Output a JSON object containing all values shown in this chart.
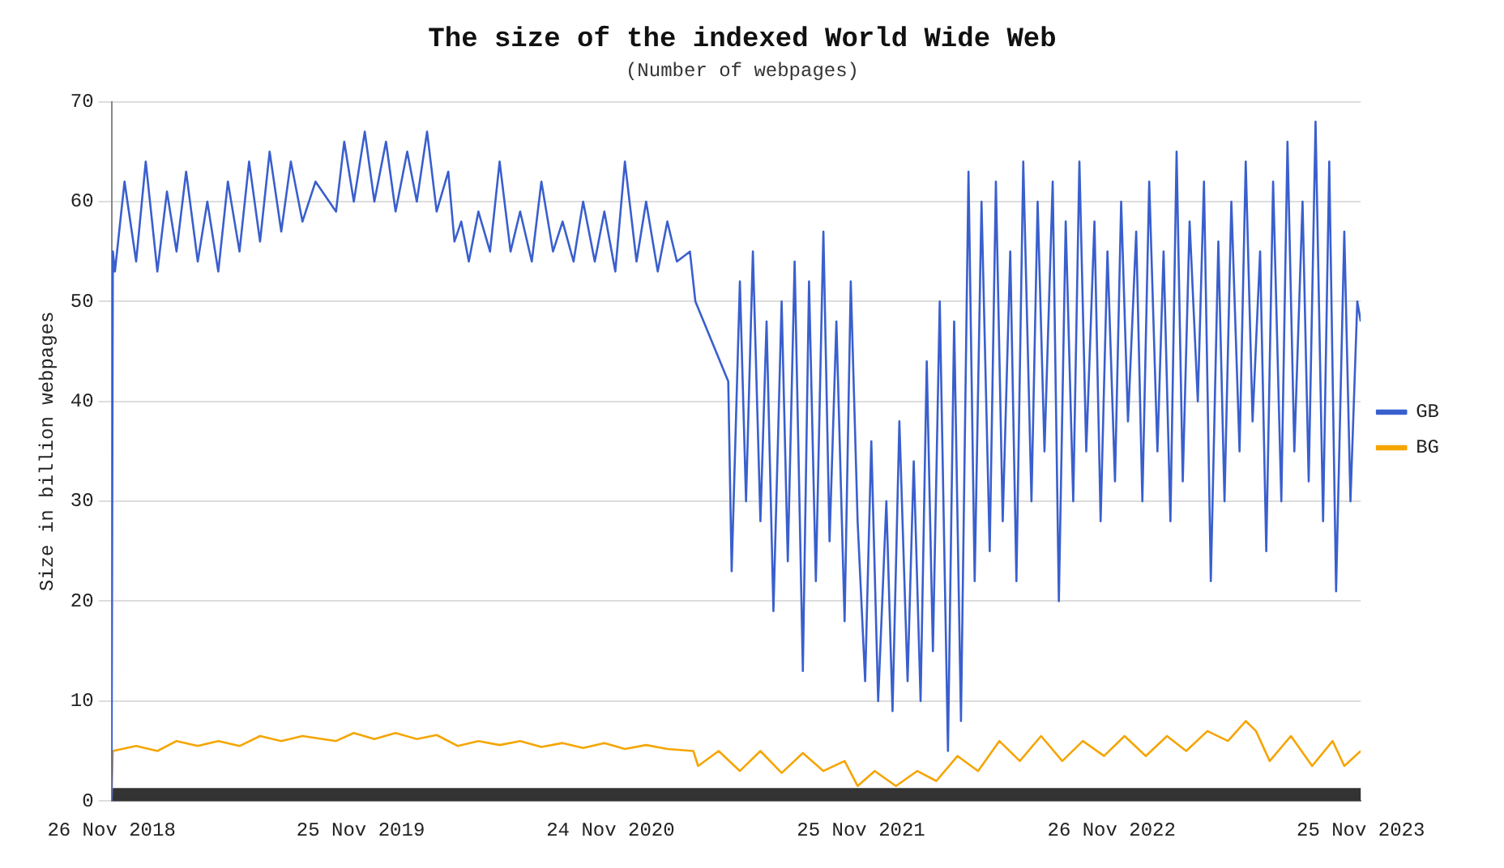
{
  "chart_data": {
    "type": "line",
    "title": "The size of the indexed World Wide Web",
    "subtitle": "(Number of webpages)",
    "ylabel": "Size in billion webpages",
    "xlim": [
      "2018-11-26",
      "2023-11-25"
    ],
    "xticks": [
      {
        "value": "2018-11-26",
        "label": "26 Nov 2018"
      },
      {
        "value": "2019-11-25",
        "label": "25 Nov 2019"
      },
      {
        "value": "2020-11-24",
        "label": "24 Nov 2020"
      },
      {
        "value": "2021-11-25",
        "label": "25 Nov 2021"
      },
      {
        "value": "2022-11-26",
        "label": "26 Nov 2022"
      },
      {
        "value": "2023-11-25",
        "label": "25 Nov 2023"
      }
    ],
    "ylim": [
      0,
      70
    ],
    "yticks": [
      0,
      10,
      20,
      30,
      40,
      50,
      60,
      70
    ],
    "grid": "y",
    "legend": "right",
    "marker": "none",
    "line_style": "solid",
    "bands": [
      {
        "axis": "y",
        "from": 0,
        "to": 1.3,
        "color": "#333333"
      }
    ],
    "series": [
      {
        "name": "GB",
        "color": "#3a5fcd",
        "x": [
          "2018-11-26",
          "2018-11-28",
          "2018-12-01",
          "2018-12-15",
          "2019-01-01",
          "2019-01-15",
          "2019-02-01",
          "2019-02-15",
          "2019-03-01",
          "2019-03-15",
          "2019-04-01",
          "2019-04-15",
          "2019-05-01",
          "2019-05-15",
          "2019-06-01",
          "2019-06-15",
          "2019-07-01",
          "2019-07-15",
          "2019-08-01",
          "2019-08-15",
          "2019-09-01",
          "2019-09-20",
          "2019-10-20",
          "2019-11-01",
          "2019-11-15",
          "2019-12-01",
          "2019-12-15",
          "2020-01-01",
          "2020-01-15",
          "2020-02-01",
          "2020-02-15",
          "2020-03-01",
          "2020-03-15",
          "2020-04-01",
          "2020-04-10",
          "2020-04-20",
          "2020-05-01",
          "2020-05-15",
          "2020-06-01",
          "2020-06-15",
          "2020-07-01",
          "2020-07-15",
          "2020-08-01",
          "2020-08-15",
          "2020-09-01",
          "2020-09-15",
          "2020-10-01",
          "2020-10-15",
          "2020-11-01",
          "2020-11-15",
          "2020-12-01",
          "2020-12-15",
          "2021-01-01",
          "2021-01-15",
          "2021-02-01",
          "2021-02-15",
          "2021-03-01",
          "2021-03-20",
          "2021-03-28",
          "2021-05-15",
          "2021-05-20",
          "2021-06-01",
          "2021-06-10",
          "2021-06-20",
          "2021-07-01",
          "2021-07-10",
          "2021-07-20",
          "2021-08-01",
          "2021-08-10",
          "2021-08-20",
          "2021-09-01",
          "2021-09-10",
          "2021-09-20",
          "2021-10-01",
          "2021-10-10",
          "2021-10-20",
          "2021-11-01",
          "2021-11-10",
          "2021-11-20",
          "2021-12-01",
          "2021-12-10",
          "2021-12-20",
          "2022-01-01",
          "2022-01-10",
          "2022-01-20",
          "2022-02-01",
          "2022-02-10",
          "2022-02-20",
          "2022-03-01",
          "2022-03-10",
          "2022-03-20",
          "2022-04-01",
          "2022-04-10",
          "2022-04-20",
          "2022-05-01",
          "2022-05-10",
          "2022-05-20",
          "2022-06-01",
          "2022-06-10",
          "2022-06-20",
          "2022-07-01",
          "2022-07-10",
          "2022-07-20",
          "2022-08-01",
          "2022-08-10",
          "2022-08-20",
          "2022-09-01",
          "2022-09-10",
          "2022-09-20",
          "2022-10-01",
          "2022-10-10",
          "2022-10-20",
          "2022-11-01",
          "2022-11-10",
          "2022-11-20",
          "2022-12-01",
          "2022-12-10",
          "2022-12-20",
          "2023-01-01",
          "2023-01-10",
          "2023-01-20",
          "2023-02-01",
          "2023-02-10",
          "2023-02-20",
          "2023-03-01",
          "2023-03-10",
          "2023-03-20",
          "2023-04-01",
          "2023-04-10",
          "2023-04-20",
          "2023-05-01",
          "2023-05-10",
          "2023-05-20",
          "2023-06-01",
          "2023-06-10",
          "2023-06-20",
          "2023-07-01",
          "2023-07-10",
          "2023-07-20",
          "2023-08-01",
          "2023-08-10",
          "2023-08-20",
          "2023-09-01",
          "2023-09-10",
          "2023-09-20",
          "2023-10-01",
          "2023-10-10",
          "2023-10-20",
          "2023-11-01",
          "2023-11-10",
          "2023-11-20",
          "2023-11-25"
        ],
        "values": [
          0,
          55,
          53,
          62,
          54,
          64,
          53,
          61,
          55,
          63,
          54,
          60,
          53,
          62,
          55,
          64,
          56,
          65,
          57,
          64,
          58,
          62,
          59,
          66,
          60,
          67,
          60,
          66,
          59,
          65,
          60,
          67,
          59,
          63,
          56,
          58,
          54,
          59,
          55,
          64,
          55,
          59,
          54,
          62,
          55,
          58,
          54,
          60,
          54,
          59,
          53,
          64,
          54,
          60,
          53,
          58,
          54,
          55,
          50,
          42,
          23,
          52,
          30,
          55,
          28,
          48,
          19,
          50,
          24,
          54,
          13,
          52,
          22,
          57,
          26,
          48,
          18,
          52,
          28,
          12,
          36,
          10,
          30,
          9,
          38,
          12,
          34,
          10,
          44,
          15,
          50,
          5,
          48,
          8,
          63,
          22,
          60,
          25,
          62,
          28,
          55,
          22,
          64,
          30,
          60,
          35,
          62,
          20,
          58,
          30,
          64,
          35,
          58,
          28,
          55,
          32,
          60,
          38,
          57,
          30,
          62,
          35,
          55,
          28,
          65,
          32,
          58,
          40,
          62,
          22,
          56,
          30,
          60,
          35,
          64,
          38,
          55,
          25,
          62,
          30,
          66,
          35,
          60,
          32,
          68,
          28,
          64,
          21,
          57,
          30,
          50,
          48
        ]
      },
      {
        "name": "BG",
        "color": "#f5a500",
        "x": [
          "2018-11-26",
          "2018-11-28",
          "2019-01-01",
          "2019-02-01",
          "2019-03-01",
          "2019-04-01",
          "2019-05-01",
          "2019-06-01",
          "2019-07-01",
          "2019-08-01",
          "2019-09-01",
          "2019-10-20",
          "2019-11-15",
          "2019-12-15",
          "2020-01-15",
          "2020-02-15",
          "2020-03-15",
          "2020-04-15",
          "2020-05-15",
          "2020-06-15",
          "2020-07-15",
          "2020-08-15",
          "2020-09-15",
          "2020-10-15",
          "2020-11-15",
          "2020-12-15",
          "2021-01-15",
          "2021-02-15",
          "2021-03-25",
          "2021-04-01",
          "2021-05-01",
          "2021-06-01",
          "2021-07-01",
          "2021-08-01",
          "2021-09-01",
          "2021-10-01",
          "2021-11-01",
          "2021-11-20",
          "2021-12-15",
          "2022-01-15",
          "2022-02-15",
          "2022-03-15",
          "2022-04-15",
          "2022-05-15",
          "2022-06-15",
          "2022-07-15",
          "2022-08-15",
          "2022-09-15",
          "2022-10-15",
          "2022-11-15",
          "2022-12-15",
          "2023-01-15",
          "2023-02-15",
          "2023-03-15",
          "2023-04-15",
          "2023-05-15",
          "2023-06-10",
          "2023-06-25",
          "2023-07-15",
          "2023-08-15",
          "2023-09-15",
          "2023-10-15",
          "2023-11-01",
          "2023-11-25"
        ],
        "values": [
          0,
          5,
          5.5,
          5,
          6,
          5.5,
          6,
          5.5,
          6.5,
          6,
          6.5,
          6,
          6.8,
          6.2,
          6.8,
          6.2,
          6.6,
          5.5,
          6,
          5.6,
          6,
          5.4,
          5.8,
          5.3,
          5.8,
          5.2,
          5.6,
          5.2,
          5,
          3.5,
          5,
          3,
          5,
          2.8,
          4.8,
          3,
          4,
          1.5,
          3,
          1.5,
          3,
          2,
          4.5,
          3,
          6,
          4,
          6.5,
          4,
          6,
          4.5,
          6.5,
          4.5,
          6.5,
          5,
          7,
          6,
          8,
          7,
          4,
          6.5,
          3.5,
          6,
          3.5,
          5
        ]
      }
    ]
  }
}
